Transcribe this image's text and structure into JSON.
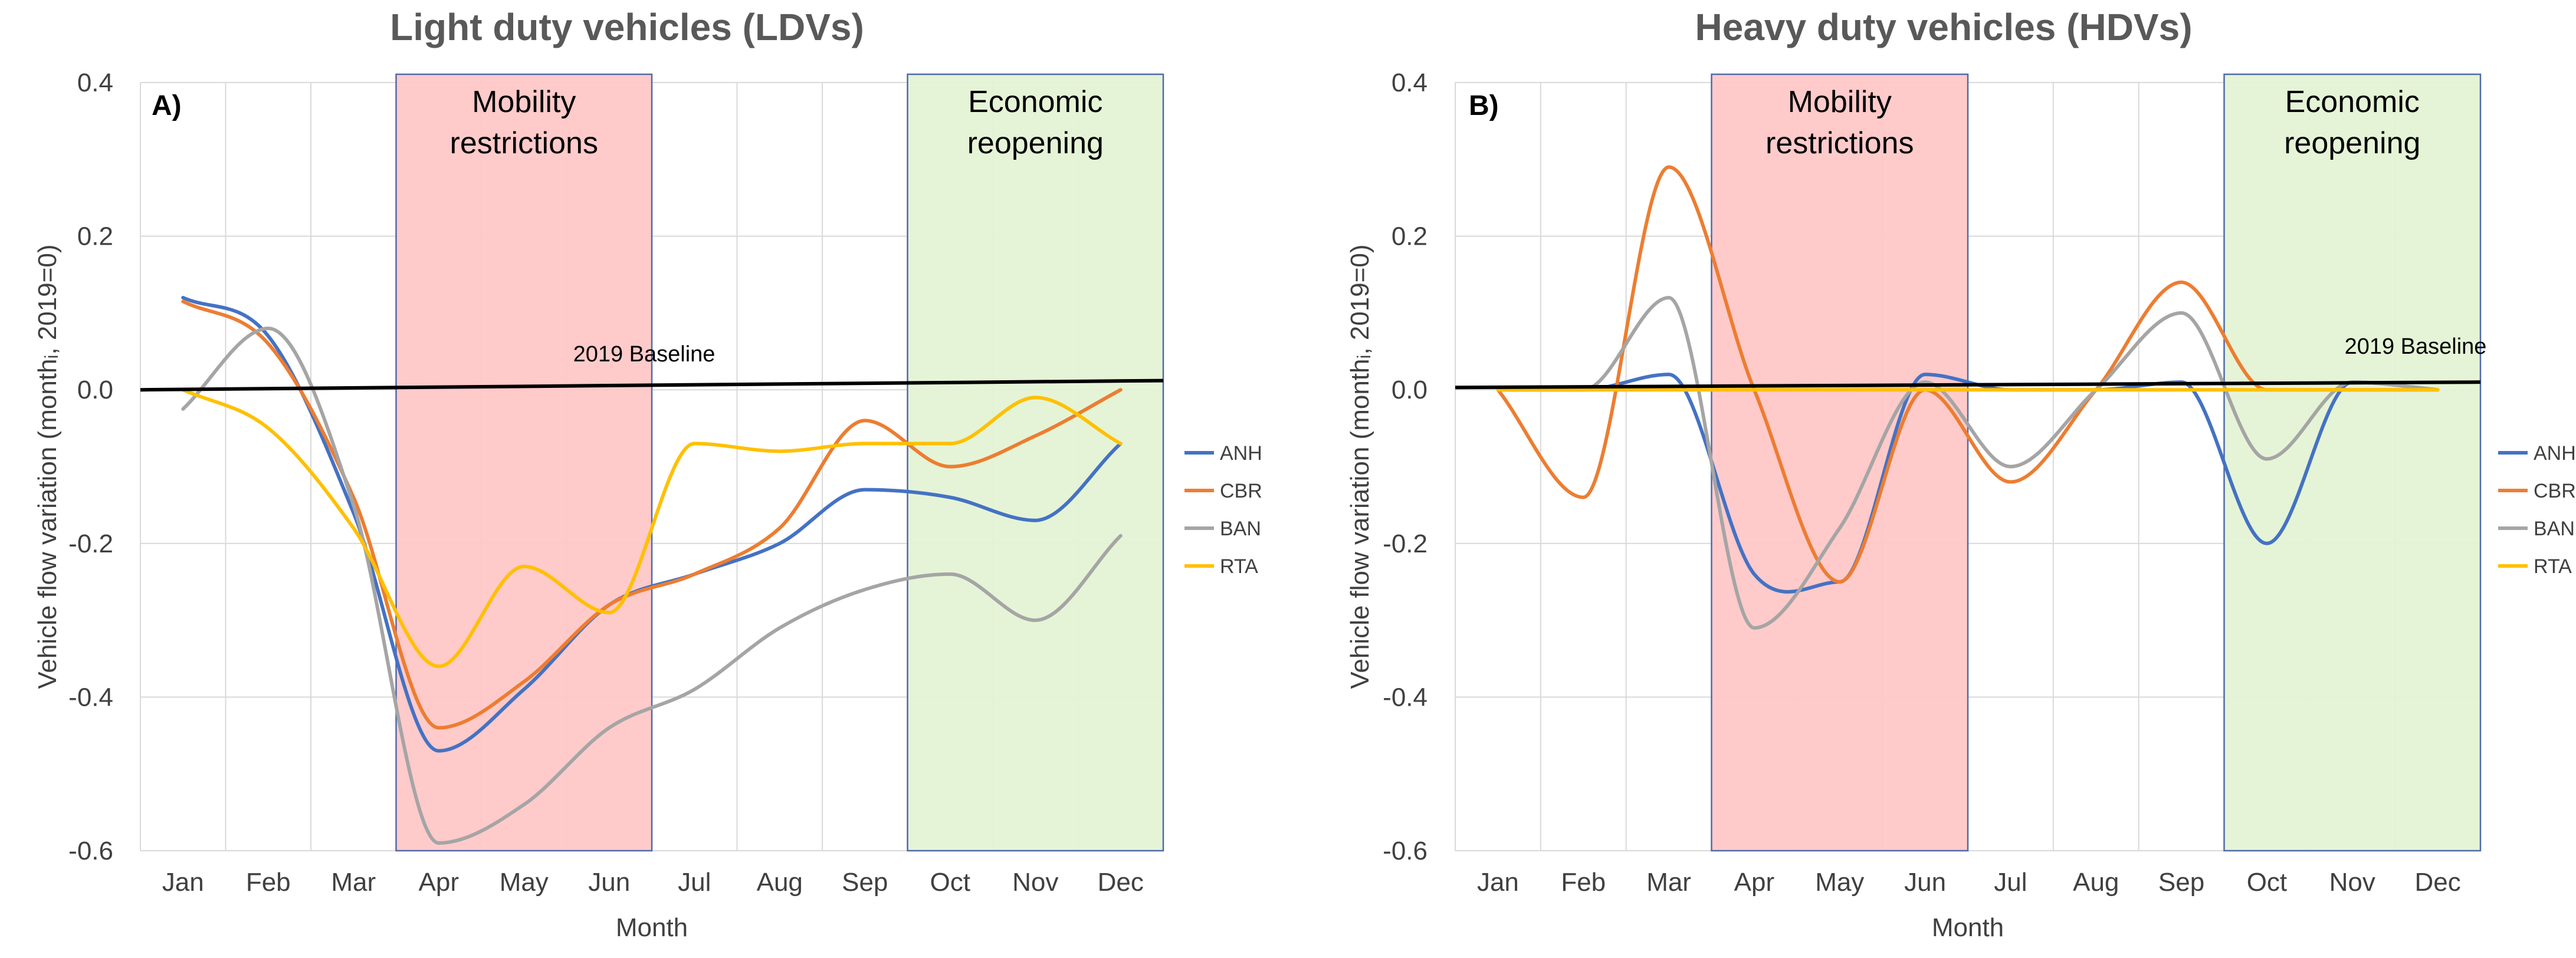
{
  "chart_data": [
    {
      "type": "line",
      "panel_id": "A",
      "title": "Light duty vehicles (LDVs)",
      "panel_label": "A)",
      "xlabel": "Month",
      "ylabel": "Vehicle flow variation (monthᵢ, 2019=0)",
      "ylim": [
        -0.6,
        0.4
      ],
      "yticks": [
        "0.4",
        "0.2",
        "0.0",
        "-0.2",
        "-0.4",
        "-0.6"
      ],
      "categories": [
        "Jan",
        "Feb",
        "Mar",
        "Apr",
        "May",
        "Jun",
        "Jul",
        "Aug",
        "Sep",
        "Oct",
        "Nov",
        "Dec"
      ],
      "grid": true,
      "legend_position": "right",
      "shaded_regions": [
        {
          "label_line1": "Mobility",
          "label_line2": "restrictions",
          "start": 3.5,
          "end": 6.5,
          "color": "#ffc7c7"
        },
        {
          "label_line1": "Economic",
          "label_line2": "reopening",
          "start": 9.5,
          "end": 12.5,
          "color": "#e4f3d4"
        }
      ],
      "baseline": {
        "label": "2019 Baseline",
        "start": 0.0,
        "end": 0.012
      },
      "series": [
        {
          "name": "ANH",
          "color": "#4472c4",
          "values": [
            0.12,
            0.07,
            -0.16,
            -0.47,
            -0.39,
            -0.28,
            -0.24,
            -0.2,
            -0.13,
            -0.14,
            -0.17,
            -0.07
          ]
        },
        {
          "name": "CBR",
          "color": "#ed7d31",
          "values": [
            0.115,
            0.06,
            -0.14,
            -0.44,
            -0.38,
            -0.28,
            -0.24,
            -0.18,
            -0.04,
            -0.1,
            -0.06,
            0.0
          ]
        },
        {
          "name": "BAN",
          "color": "#a5a5a5",
          "values": [
            -0.025,
            0.08,
            -0.15,
            -0.59,
            -0.54,
            -0.44,
            -0.39,
            -0.31,
            -0.26,
            -0.24,
            -0.3,
            -0.19
          ]
        },
        {
          "name": "RTA",
          "color": "#ffc000",
          "values": [
            0.0,
            -0.05,
            -0.18,
            -0.36,
            -0.23,
            -0.29,
            -0.07,
            -0.08,
            -0.07,
            -0.07,
            -0.01,
            -0.07
          ]
        }
      ]
    },
    {
      "type": "line",
      "panel_id": "B",
      "title": "Heavy duty vehicles (HDVs)",
      "panel_label": "B)",
      "xlabel": "Month",
      "ylabel": "Vehicle flow variation (monthᵢ, 2019=0)",
      "ylim": [
        -0.6,
        0.4
      ],
      "yticks": [
        "0.4",
        "0.2",
        "0.0",
        "-0.2",
        "-0.4",
        "-0.6"
      ],
      "categories": [
        "Jan",
        "Feb",
        "Mar",
        "Apr",
        "May",
        "Jun",
        "Jul",
        "Aug",
        "Sep",
        "Oct",
        "Nov",
        "Dec"
      ],
      "grid": true,
      "legend_position": "right",
      "shaded_regions": [
        {
          "label_line1": "Mobility",
          "label_line2": "restrictions",
          "start": 3.5,
          "end": 6.5,
          "color": "#ffc7c7"
        },
        {
          "label_line1": "Economic",
          "label_line2": "reopening",
          "start": 9.5,
          "end": 12.5,
          "color": "#e4f3d4"
        }
      ],
      "baseline": {
        "label": "2019 Baseline",
        "start": 0.003,
        "end": 0.01
      },
      "series": [
        {
          "name": "ANH",
          "color": "#4472c4",
          "values": [
            0.0,
            0.0,
            0.02,
            -0.24,
            -0.25,
            0.02,
            0.0,
            0.0,
            0.01,
            -0.2,
            0.01,
            0.0
          ]
        },
        {
          "name": "CBR",
          "color": "#ed7d31",
          "values": [
            0.0,
            -0.14,
            0.29,
            0.0,
            -0.25,
            0.0,
            -0.12,
            0.0,
            0.14,
            0.0,
            0.0,
            0.0
          ]
        },
        {
          "name": "BAN",
          "color": "#a5a5a5",
          "values": [
            0.0,
            0.0,
            0.12,
            -0.31,
            -0.18,
            0.01,
            -0.1,
            0.0,
            0.1,
            -0.09,
            0.01,
            0.0
          ]
        },
        {
          "name": "RTA",
          "color": "#ffc000",
          "values": [
            0.0,
            0.0,
            0.0,
            0.0,
            0.0,
            0.0,
            0.0,
            0.0,
            0.0,
            0.0,
            0.0,
            0.0
          ]
        }
      ]
    }
  ]
}
